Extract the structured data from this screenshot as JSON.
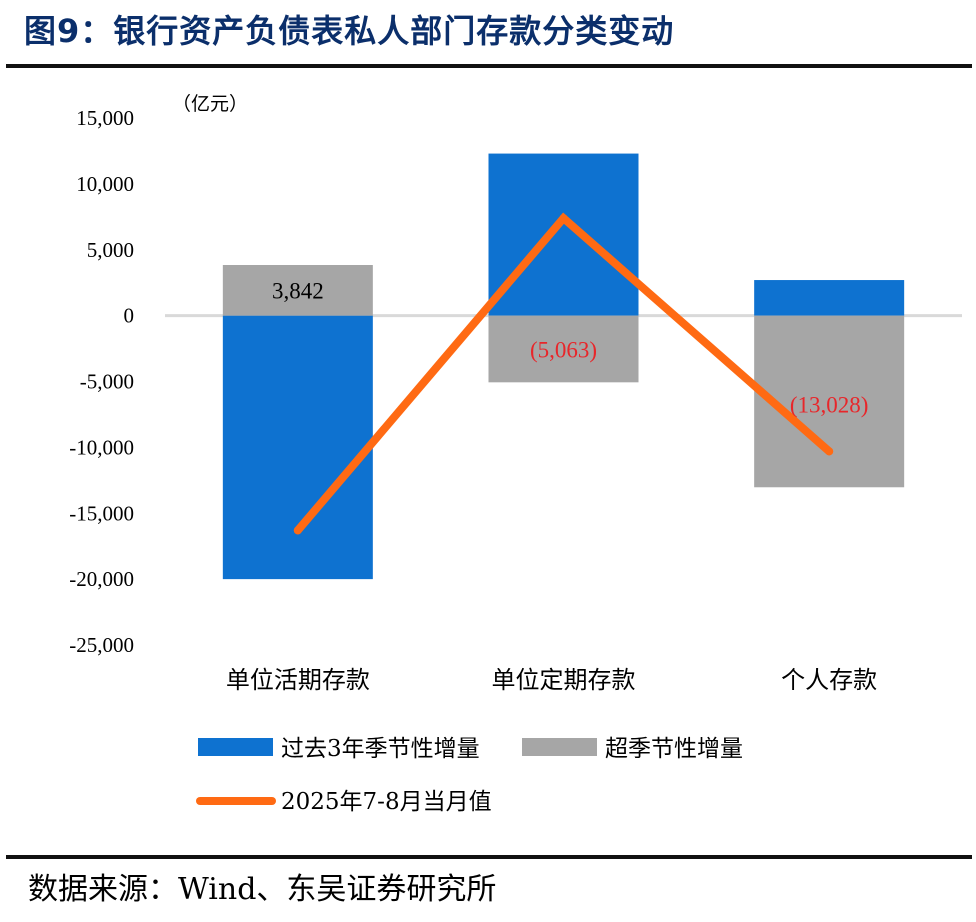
{
  "header": {
    "title": "图9：银行资产负债表私人部门存款分类变动"
  },
  "footer": {
    "source": "数据来源：Wind、东吴证券研究所"
  },
  "chart_data": {
    "type": "bar",
    "unit_label": "（亿元）",
    "categories": [
      "单位活期存款",
      "单位定期存款",
      "个人存款"
    ],
    "series": [
      {
        "name": "过去3年季节性增量",
        "kind": "bar",
        "color": "#0e72d0",
        "values": [
          -20000,
          12300,
          2700
        ]
      },
      {
        "name": "超季节性增量",
        "kind": "bar",
        "color": "#a6a6a6",
        "values": [
          3842,
          -5063,
          -13028
        ],
        "data_labels": [
          "3,842",
          "(5,063)",
          "(13,028)"
        ]
      },
      {
        "name": "2025年7-8月当月值",
        "kind": "line",
        "color": "#ff6a13",
        "values": [
          -16300,
          7400,
          -10300
        ]
      }
    ],
    "ylim": [
      -25000,
      15000
    ],
    "yticks": [
      15000,
      10000,
      5000,
      0,
      -5000,
      -10000,
      -15000,
      -20000,
      -25000
    ],
    "ytick_labels": [
      "15,000",
      "10,000",
      "5,000",
      "0",
      "-5,000",
      "-10,000",
      "-15,000",
      "-20,000",
      "-25,000"
    ],
    "zero_line_color": "#d9d9d9",
    "label_colors": [
      "#000000",
      "#e8262a",
      "#e8262a"
    ],
    "legend_position": "bottom",
    "grid": false
  }
}
